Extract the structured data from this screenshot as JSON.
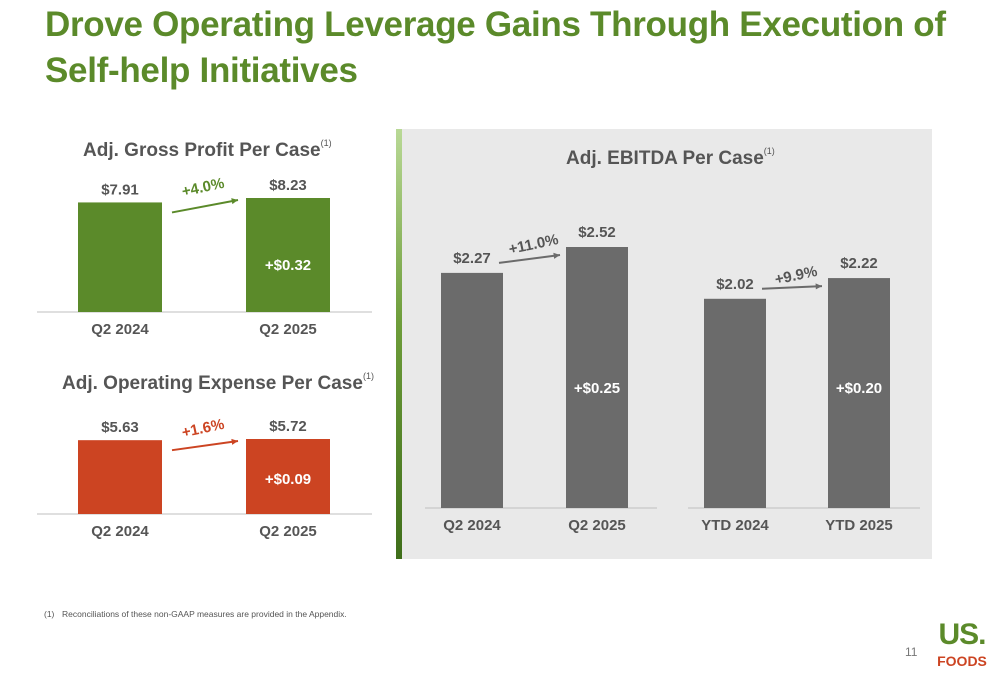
{
  "slide": {
    "title": "Drove Operating Leverage Gains Through Execution of Self-help Initiatives",
    "footnote_number": "(1)",
    "footnote_text": "Reconciliations of these non-GAAP measures are provided in the Appendix.",
    "page_number": "11",
    "logo_top": "US.",
    "logo_bottom": "FOODS"
  },
  "colors": {
    "title_green": "#5b8a2a",
    "bar_green": "#5b8a2a",
    "bar_red": "#cc4422",
    "bar_gray": "#6b6b6b",
    "panel_gray": "#e9e9e9"
  },
  "chart_data": [
    {
      "type": "bar",
      "title": "Adj. Gross Profit Per Case",
      "title_sup": "(1)",
      "categories": [
        "Q2 2024",
        "Q2 2025"
      ],
      "values": [
        7.91,
        8.23
      ],
      "value_labels": [
        "$7.91",
        "$8.23"
      ],
      "delta_label": "+$0.32",
      "change_label": "+4.0%",
      "bar_color": "#5b8a2a",
      "change_color": "#5b8a2a"
    },
    {
      "type": "bar",
      "title": "Adj. Operating Expense Per Case",
      "title_sup": "(1)",
      "categories": [
        "Q2 2024",
        "Q2 2025"
      ],
      "values": [
        5.63,
        5.72
      ],
      "value_labels": [
        "$5.63",
        "$5.72"
      ],
      "delta_label": "+$0.09",
      "change_label": "+1.6%",
      "bar_color": "#cc4422",
      "change_color": "#cc4422"
    },
    {
      "type": "bar",
      "title": "Adj. EBITDA Per Case",
      "title_sup": "(1)",
      "categories": [
        "Q2 2024",
        "Q2 2025",
        "YTD 2024",
        "YTD 2025"
      ],
      "values": [
        2.27,
        2.52,
        2.02,
        2.22
      ],
      "value_labels": [
        "$2.27",
        "$2.52",
        "$2.02",
        "$2.22"
      ],
      "groups": [
        {
          "change_label": "+11.0%",
          "delta_label": "+$0.25"
        },
        {
          "change_label": "+9.9%",
          "delta_label": "+$0.20"
        }
      ],
      "bar_color": "#6b6b6b",
      "change_color": "#6b6b6b"
    }
  ]
}
